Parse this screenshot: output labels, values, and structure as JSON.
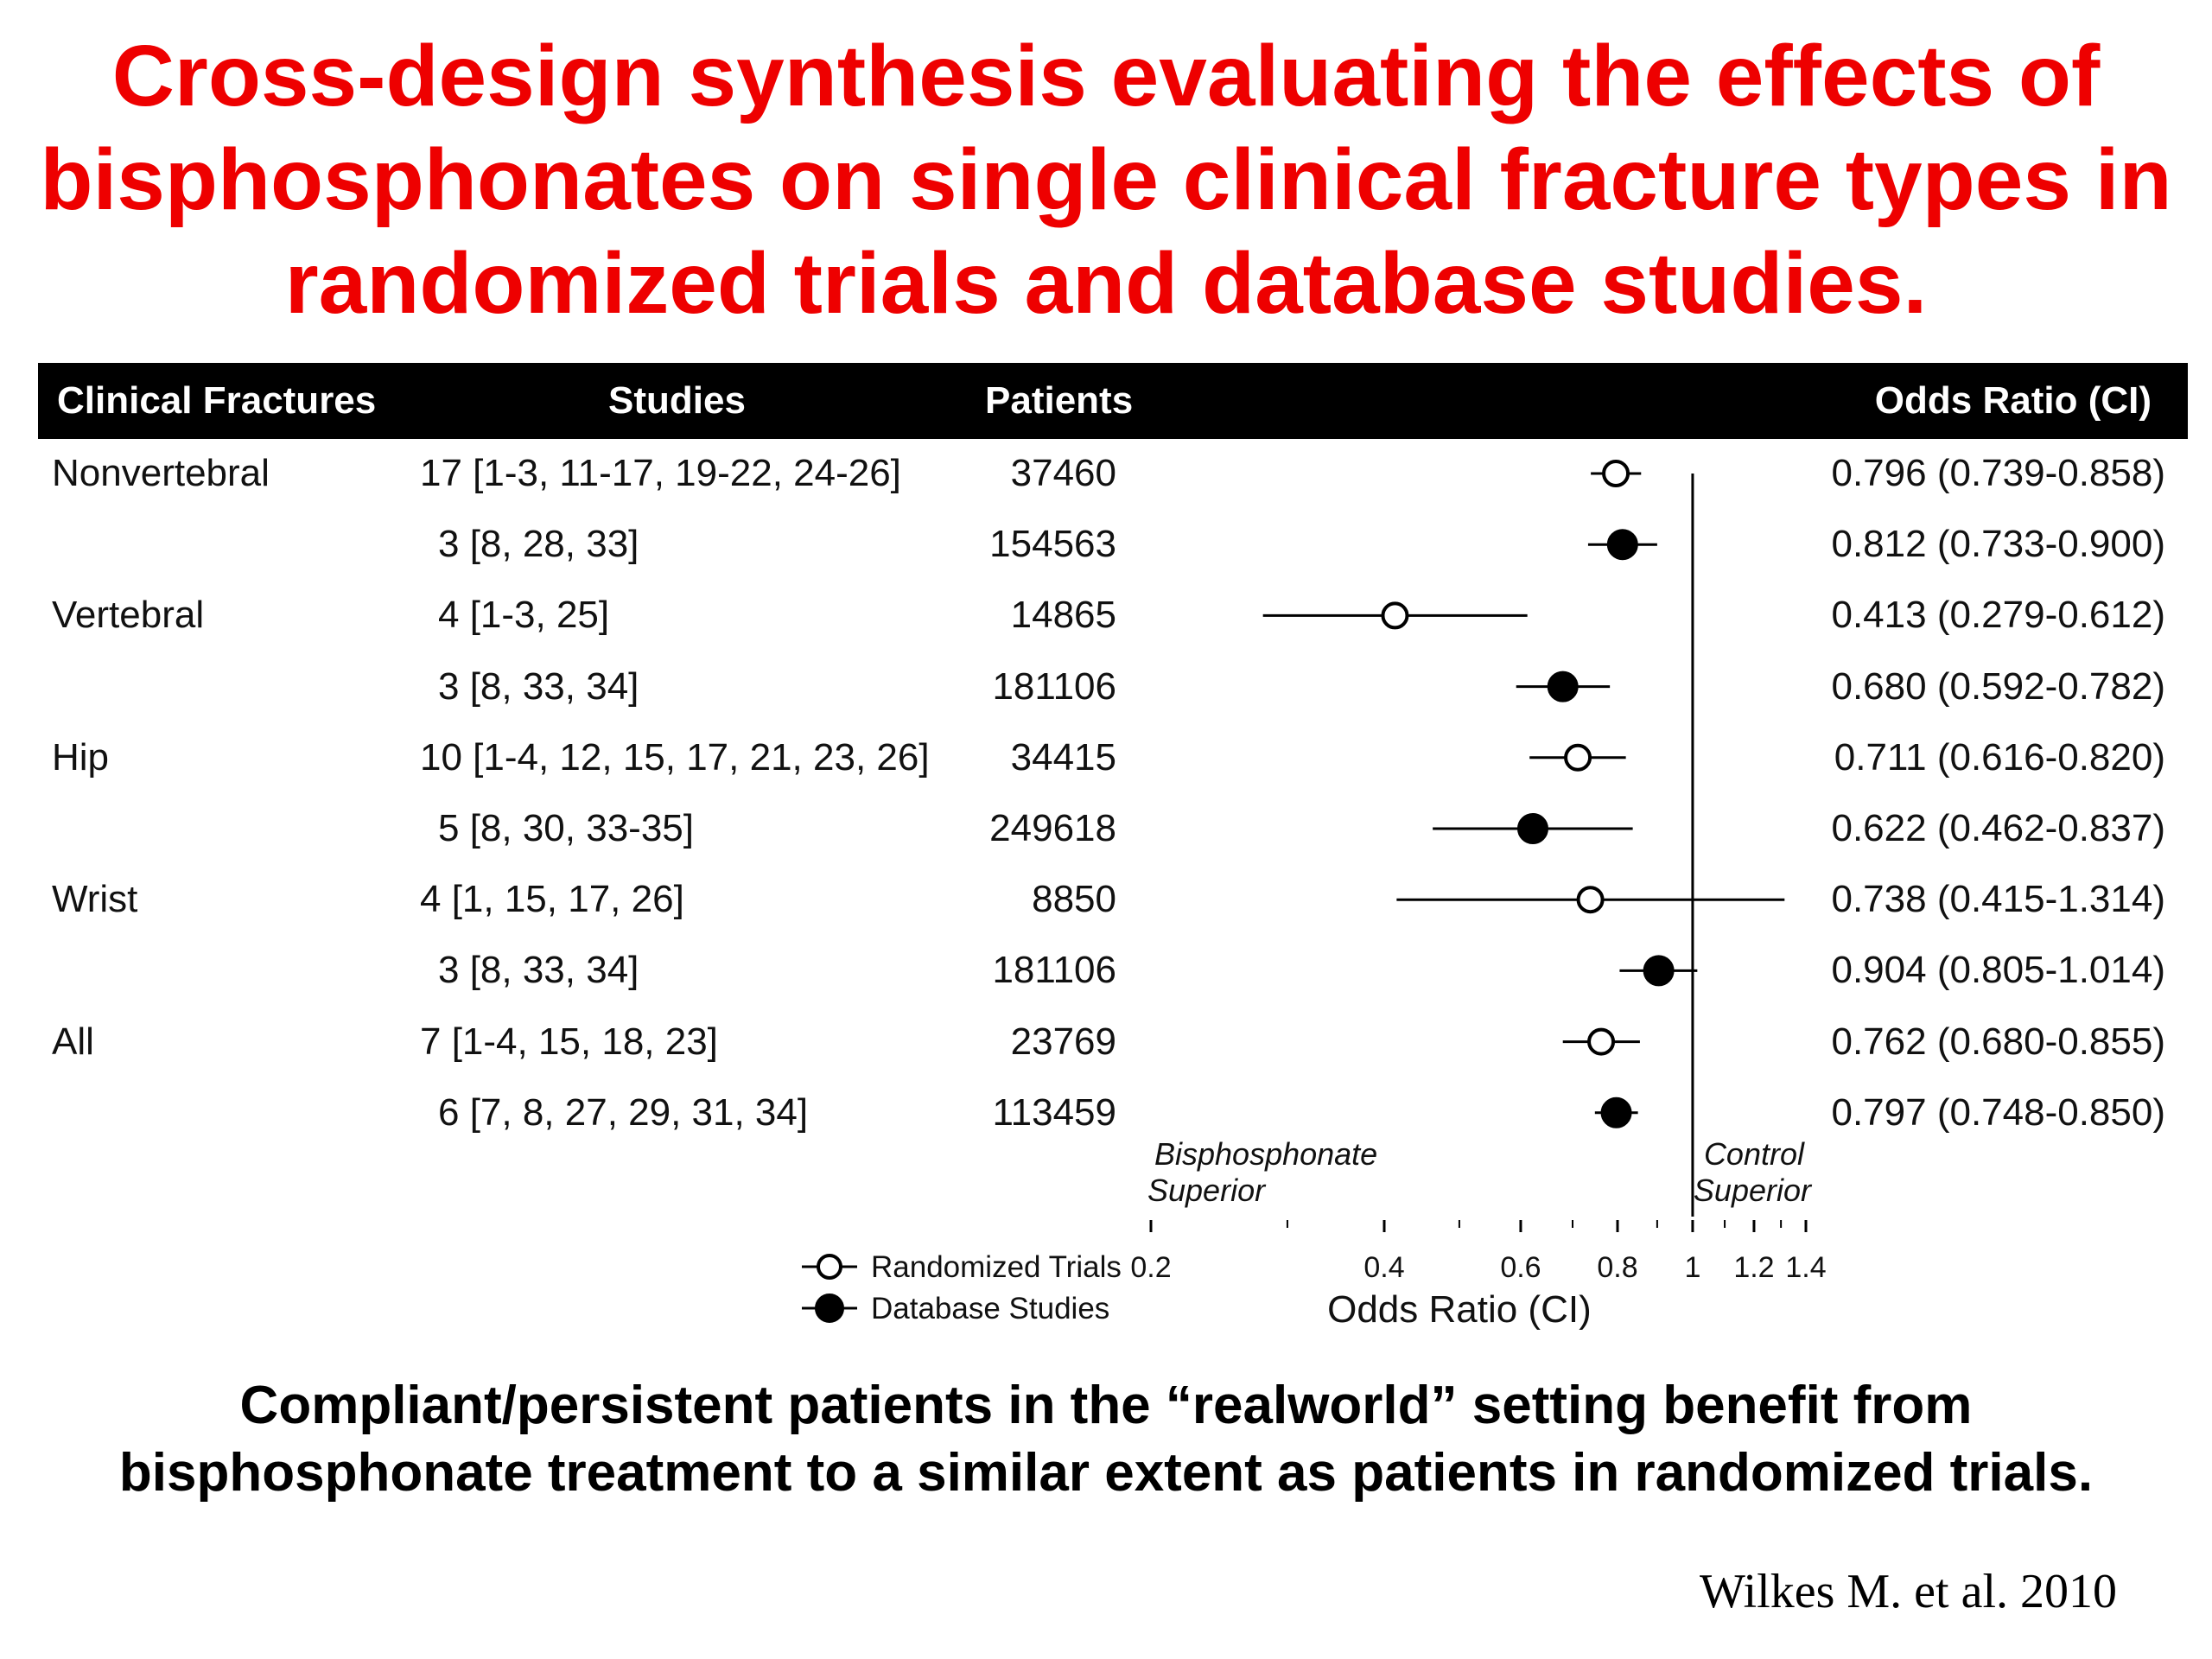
{
  "title": {
    "line1": "Cross-design synthesis evaluating the effects of",
    "line2": "bisphosphonates on single clinical fracture types in",
    "line3": "randomized trials and database studies."
  },
  "table": {
    "headers": {
      "fracture": "Clinical Fractures",
      "studies": "Studies",
      "patients": "Patients",
      "or": "Odds Ratio (CI)"
    },
    "rows": [
      {
        "fracture": "Nonvertebral",
        "studies": "17 [1-3, 11-17, 19-22, 24-26]",
        "patients": "37460",
        "or_text": "0.796 (0.739-0.858)"
      },
      {
        "fracture": "",
        "studies": "3 [8, 28, 33]",
        "patients": "154563",
        "or_text": "0.812 (0.733-0.900)"
      },
      {
        "fracture": "Vertebral",
        "studies": "4 [1-3, 25]",
        "patients": "14865",
        "or_text": "0.413 (0.279-0.612)"
      },
      {
        "fracture": "",
        "studies": "3 [8, 33, 34]",
        "patients": "181106",
        "or_text": "0.680 (0.592-0.782)"
      },
      {
        "fracture": "Hip",
        "studies": "10 [1-4, 12, 15, 17, 21, 23, 26]",
        "patients": "34415",
        "or_text": "0.711 (0.616-0.820)"
      },
      {
        "fracture": "",
        "studies": "5 [8, 30, 33-35]",
        "patients": "249618",
        "or_text": "0.622 (0.462-0.837)"
      },
      {
        "fracture": "Wrist",
        "studies": "4 [1, 15, 17, 26]",
        "patients": "8850",
        "or_text": "0.738 (0.415-1.314)"
      },
      {
        "fracture": "",
        "studies": "3 [8, 33, 34]",
        "patients": "181106",
        "or_text": "0.904 (0.805-1.014)"
      },
      {
        "fracture": "All",
        "studies": "7 [1-4, 15, 18, 23]",
        "patients": "23769",
        "or_text": "0.762 (0.680-0.855)"
      },
      {
        "fracture": "",
        "studies": "6 [7, 8, 27, 29, 31, 34]",
        "patients": "113459",
        "or_text": "0.797 (0.748-0.850)"
      }
    ]
  },
  "chart_data": {
    "type": "scatter",
    "subtype": "forest-plot",
    "x_scale": "log",
    "xlabel": "Odds Ratio (CI)",
    "xlim": [
      0.2,
      1.4
    ],
    "xticks": [
      0.2,
      0.4,
      0.6,
      0.8,
      1,
      1.2,
      1.4
    ],
    "xtick_labels": [
      "0.2",
      "0.4",
      "0.6",
      "0.8",
      "1",
      "1.2",
      "1.4"
    ],
    "reference_line": 1,
    "region_labels": {
      "left_line1": "Bisphosphonate",
      "left_line2": "Superior",
      "right_line1": "Control",
      "right_line2": "Superior"
    },
    "series": [
      {
        "name": "Randomized Trials",
        "marker": "open-circle",
        "points": [
          {
            "row": 0,
            "or": 0.796,
            "lo": 0.739,
            "hi": 0.858
          },
          {
            "row": 2,
            "or": 0.413,
            "lo": 0.279,
            "hi": 0.612
          },
          {
            "row": 4,
            "or": 0.711,
            "lo": 0.616,
            "hi": 0.82
          },
          {
            "row": 6,
            "or": 0.738,
            "lo": 0.415,
            "hi": 1.314
          },
          {
            "row": 8,
            "or": 0.762,
            "lo": 0.68,
            "hi": 0.855
          }
        ]
      },
      {
        "name": "Database Studies",
        "marker": "filled-circle",
        "points": [
          {
            "row": 1,
            "or": 0.812,
            "lo": 0.733,
            "hi": 0.9
          },
          {
            "row": 3,
            "or": 0.68,
            "lo": 0.592,
            "hi": 0.782
          },
          {
            "row": 5,
            "or": 0.622,
            "lo": 0.462,
            "hi": 0.837
          },
          {
            "row": 7,
            "or": 0.904,
            "lo": 0.805,
            "hi": 1.014
          },
          {
            "row": 9,
            "or": 0.797,
            "lo": 0.748,
            "hi": 0.85
          }
        ]
      }
    ],
    "legend_position": "bottom-left"
  },
  "footer": {
    "line1": "Compliant/persistent patients in the “realworld” setting benefit from",
    "line2": "bisphosphonate treatment to a similar extent as patients in randomized trials."
  },
  "citation": "Wilkes M. et al. 2010"
}
